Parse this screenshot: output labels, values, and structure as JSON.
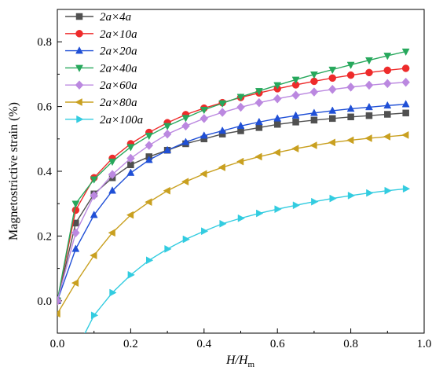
{
  "chart_data": {
    "type": "line",
    "title": "",
    "xlabel": "H/H",
    "xlabel_sub": "m",
    "ylabel": "Magnetostrictive strain (%)",
    "xlim": [
      0.0,
      1.0
    ],
    "ylim": [
      -0.1,
      0.9
    ],
    "xticks": [
      "0.0",
      "0.2",
      "0.4",
      "0.6",
      "0.8",
      "1.0"
    ],
    "yticks": [
      "0.0",
      "0.2",
      "0.4",
      "0.6",
      "0.8"
    ],
    "xtick_values": [
      0.0,
      0.2,
      0.4,
      0.6,
      0.8,
      1.0
    ],
    "ytick_values": [
      0.0,
      0.2,
      0.4,
      0.6,
      0.8
    ],
    "grid": false,
    "legend_position": "top-left",
    "x": [
      0.0,
      0.05,
      0.1,
      0.15,
      0.2,
      0.25,
      0.3,
      0.35,
      0.4,
      0.45,
      0.5,
      0.55,
      0.6,
      0.65,
      0.7,
      0.75,
      0.8,
      0.85,
      0.9,
      0.95
    ],
    "series": [
      {
        "name": "2a×4a",
        "color": "#505050",
        "marker": "square",
        "values": [
          0.0,
          0.24,
          0.33,
          0.38,
          0.42,
          0.445,
          0.465,
          0.485,
          0.5,
          0.515,
          0.525,
          0.535,
          0.545,
          0.552,
          0.558,
          0.563,
          0.568,
          0.572,
          0.576,
          0.58
        ]
      },
      {
        "name": "2a×10a",
        "color": "#ee2b2b",
        "marker": "circle",
        "values": [
          0.0,
          0.28,
          0.38,
          0.44,
          0.485,
          0.52,
          0.55,
          0.575,
          0.595,
          0.612,
          0.628,
          0.642,
          0.655,
          0.667,
          0.678,
          0.688,
          0.697,
          0.705,
          0.712,
          0.718
        ]
      },
      {
        "name": "2a×20a",
        "color": "#1f4fd6",
        "marker": "triangle-up",
        "values": [
          0.0,
          0.16,
          0.265,
          0.34,
          0.395,
          0.435,
          0.465,
          0.49,
          0.51,
          0.525,
          0.54,
          0.552,
          0.563,
          0.572,
          0.58,
          0.587,
          0.593,
          0.598,
          0.603,
          0.607
        ]
      },
      {
        "name": "2a×40a",
        "color": "#27a85c",
        "marker": "triangle-down",
        "values": [
          0.0,
          0.3,
          0.375,
          0.43,
          0.475,
          0.51,
          0.54,
          0.565,
          0.59,
          0.61,
          0.63,
          0.648,
          0.666,
          0.683,
          0.699,
          0.714,
          0.729,
          0.743,
          0.757,
          0.77
        ]
      },
      {
        "name": "2a×60a",
        "color": "#bb88e0",
        "marker": "diamond",
        "values": [
          0.0,
          0.21,
          0.325,
          0.39,
          0.44,
          0.48,
          0.515,
          0.54,
          0.563,
          0.582,
          0.598,
          0.612,
          0.624,
          0.635,
          0.645,
          0.653,
          0.66,
          0.666,
          0.671,
          0.675
        ]
      },
      {
        "name": "2a×80a",
        "color": "#c9a020",
        "marker": "triangle-left",
        "values": [
          -0.04,
          0.055,
          0.14,
          0.21,
          0.265,
          0.305,
          0.34,
          0.368,
          0.392,
          0.412,
          0.43,
          0.445,
          0.458,
          0.47,
          0.48,
          0.489,
          0.496,
          0.502,
          0.507,
          0.512
        ]
      },
      {
        "name": "2a×100a",
        "color": "#33cce0",
        "marker": "triangle-right",
        "values": [
          null,
          null,
          -0.045,
          0.025,
          0.08,
          0.125,
          0.16,
          0.19,
          0.215,
          0.238,
          0.255,
          0.27,
          0.283,
          0.295,
          0.306,
          0.316,
          0.325,
          0.333,
          0.34,
          0.346
        ]
      }
    ]
  }
}
